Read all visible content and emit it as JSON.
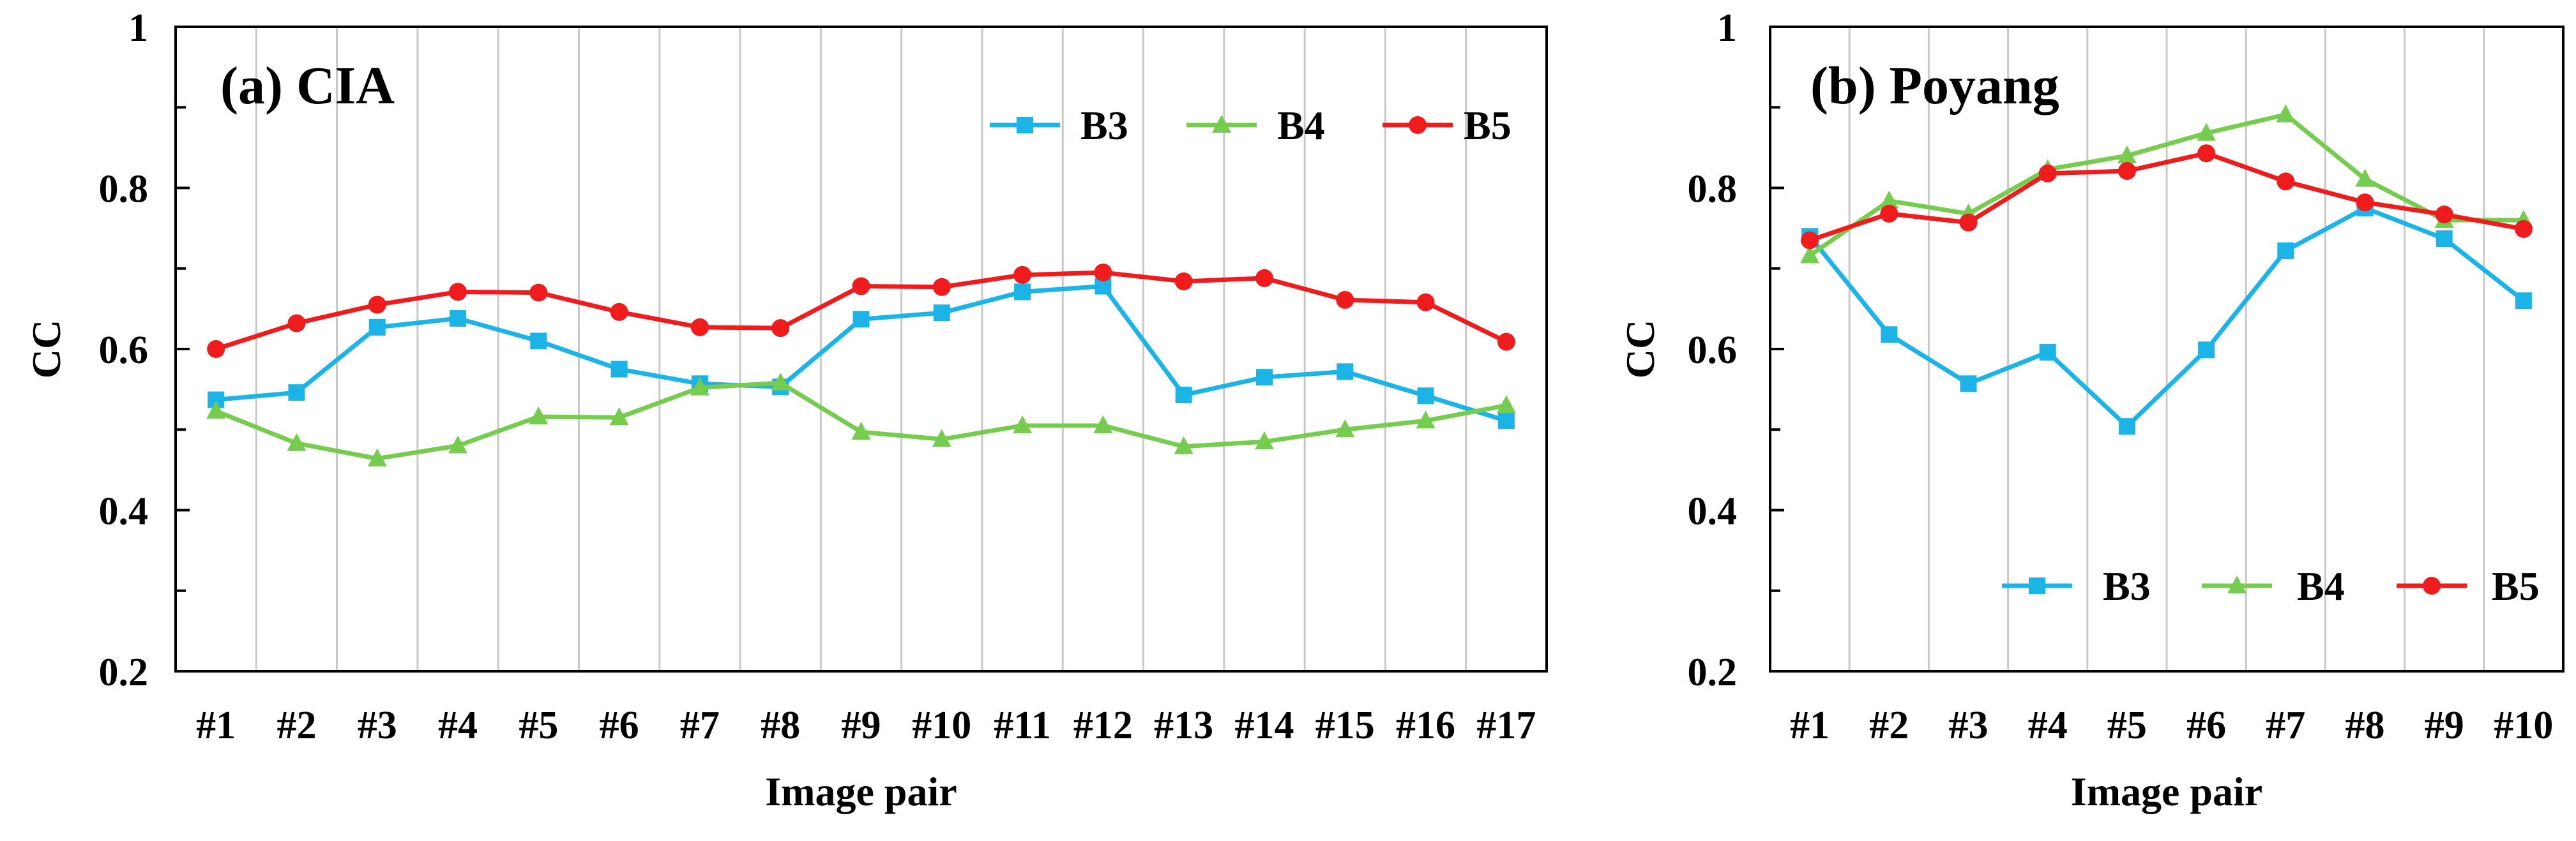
{
  "chart_data": [
    {
      "type": "line",
      "title": "(a) CIA",
      "xlabel": "Image pair",
      "ylabel": "CC",
      "ylim": [
        0.2,
        1
      ],
      "y_ticks": [
        "0.2",
        "0.4",
        "0.6",
        "0.8",
        "1"
      ],
      "grid": "vertical lines between categories",
      "legend_position": "top-right",
      "categories": [
        "#1",
        "#2",
        "#3",
        "#4",
        "#5",
        "#6",
        "#7",
        "#8",
        "#9",
        "#10",
        "#11",
        "#12",
        "#13",
        "#14",
        "#15",
        "#16",
        "#17"
      ],
      "series": [
        {
          "name": "B3",
          "color": "#1CB4E6",
          "marker": "square",
          "values": [
            0.537,
            0.546,
            0.627,
            0.638,
            0.61,
            0.575,
            0.557,
            0.553,
            0.637,
            0.645,
            0.671,
            0.678,
            0.543,
            0.565,
            0.572,
            0.542,
            0.511
          ]
        },
        {
          "name": "B4",
          "color": "#76CC4F",
          "marker": "triangle",
          "values": [
            0.523,
            0.483,
            0.464,
            0.48,
            0.516,
            0.515,
            0.552,
            0.558,
            0.497,
            0.488,
            0.505,
            0.505,
            0.479,
            0.485,
            0.5,
            0.511,
            0.53
          ]
        },
        {
          "name": "B5",
          "color": "#EE1C1C",
          "marker": "circle",
          "values": [
            0.6,
            0.632,
            0.655,
            0.671,
            0.67,
            0.646,
            0.627,
            0.626,
            0.678,
            0.677,
            0.692,
            0.695,
            0.684,
            0.688,
            0.661,
            0.658,
            0.609
          ]
        }
      ]
    },
    {
      "type": "line",
      "title": "(b) Poyang",
      "xlabel": "Image pair",
      "ylabel": "CC",
      "ylim": [
        0.2,
        1
      ],
      "y_ticks": [
        "0.2",
        "0.4",
        "0.6",
        "0.8",
        "1"
      ],
      "grid": "vertical lines between categories",
      "legend_position": "bottom-right",
      "categories": [
        "#1",
        "#2",
        "#3",
        "#4",
        "#5",
        "#6",
        "#7",
        "#8",
        "#9",
        "#10"
      ],
      "series": [
        {
          "name": "B3",
          "color": "#1CB4E6",
          "marker": "square",
          "values": [
            0.74,
            0.618,
            0.557,
            0.596,
            0.504,
            0.599,
            0.722,
            0.775,
            0.737,
            0.66
          ]
        },
        {
          "name": "B4",
          "color": "#76CC4F",
          "marker": "triangle",
          "values": [
            0.716,
            0.784,
            0.768,
            0.823,
            0.84,
            0.868,
            0.891,
            0.811,
            0.76,
            0.76
          ]
        },
        {
          "name": "B5",
          "color": "#EE1C1C",
          "marker": "circle",
          "values": [
            0.735,
            0.768,
            0.757,
            0.818,
            0.821,
            0.843,
            0.808,
            0.782,
            0.767,
            0.749
          ]
        }
      ]
    }
  ]
}
